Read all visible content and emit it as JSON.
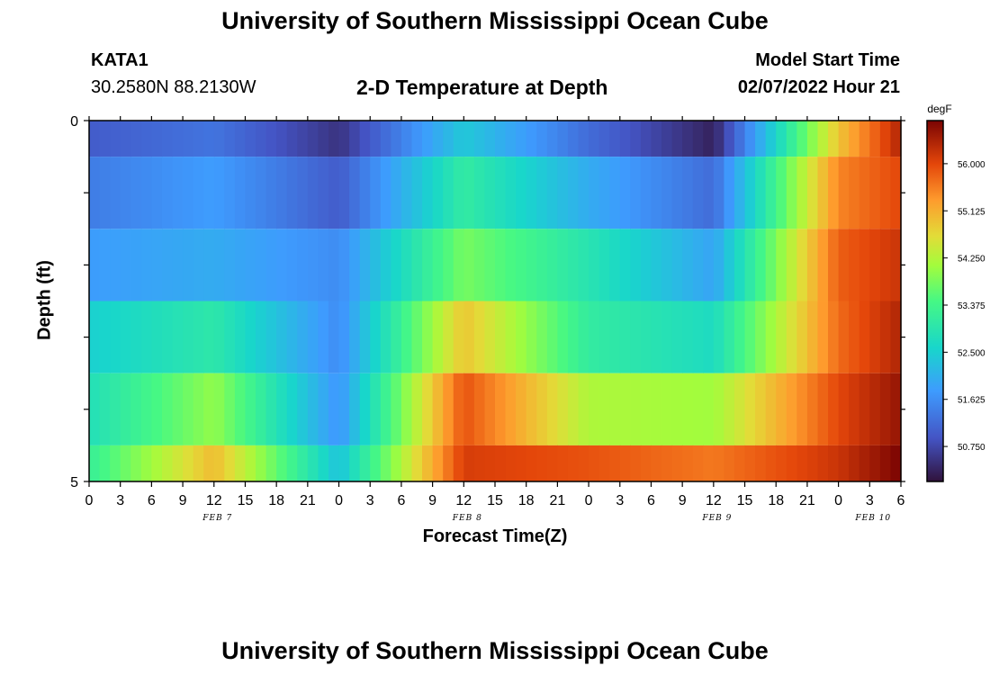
{
  "page": {
    "title": "University of Southern Mississippi Ocean Cube",
    "title_repeat": "University of Southern Mississippi Ocean Cube"
  },
  "station": {
    "id": "KATA1",
    "coords": "30.2580N  88.2130W"
  },
  "model": {
    "start_label": "Model Start Time",
    "start_value": "02/07/2022 Hour 21"
  },
  "chart_data": {
    "type": "heatmap",
    "title": "2-D Temperature at Depth",
    "xlabel": "Forecast Time(Z)",
    "ylabel": "Depth (ft)",
    "colorbar_unit": "degF",
    "y_tick_labels": [
      "0",
      "5"
    ],
    "ylim": [
      0,
      5
    ],
    "x_tick_labels": [
      "0",
      "3",
      "6",
      "9",
      "12",
      "15",
      "18",
      "21",
      "0",
      "3",
      "6",
      "9",
      "12",
      "15",
      "18",
      "21",
      "0",
      "3",
      "6",
      "9",
      "12",
      "15",
      "18",
      "21",
      "0",
      "3",
      "6"
    ],
    "date_labels": [
      {
        "label": "FEB 7",
        "hour_index": 4
      },
      {
        "label": "FEB 8",
        "hour_index": 12
      },
      {
        "label": "FEB 9",
        "hour_index": 20
      },
      {
        "label": "FEB 10",
        "hour_index": 25
      }
    ],
    "colorbar_ticks": [
      "56.000",
      "55.125",
      "54.250",
      "53.375",
      "52.500",
      "51.625",
      "50.750"
    ],
    "colorbar_tick_values": [
      56.0,
      55.125,
      54.25,
      53.375,
      52.5,
      51.625,
      50.75
    ],
    "color_range": [
      50.1,
      56.8
    ],
    "hours": [
      0,
      12,
      24,
      36,
      48,
      60,
      72,
      78
    ],
    "layers": [
      {
        "depth": "0-0.5",
        "values": [
          51.0,
          51.3,
          50.5,
          52.4,
          51.2,
          50.3,
          54.9,
          56.4
        ]
      },
      {
        "depth": "0.5-1.5",
        "values": [
          51.4,
          51.8,
          51.0,
          53.1,
          52.0,
          51.2,
          55.5,
          56.0
        ]
      },
      {
        "depth": "1.5-2.5",
        "values": [
          51.8,
          52.0,
          51.6,
          53.8,
          52.9,
          51.9,
          55.8,
          56.2
        ]
      },
      {
        "depth": "2.5-3.5",
        "values": [
          52.5,
          53.0,
          51.6,
          54.9,
          53.1,
          52.7,
          55.7,
          56.4
        ]
      },
      {
        "depth": "3.5-4.5",
        "values": [
          52.8,
          54.0,
          51.7,
          55.9,
          54.2,
          54.1,
          56.0,
          56.6
        ]
      },
      {
        "depth": "4.5-5",
        "values": [
          53.2,
          55.0,
          52.3,
          56.1,
          55.9,
          55.6,
          56.2,
          56.8
        ]
      }
    ]
  }
}
